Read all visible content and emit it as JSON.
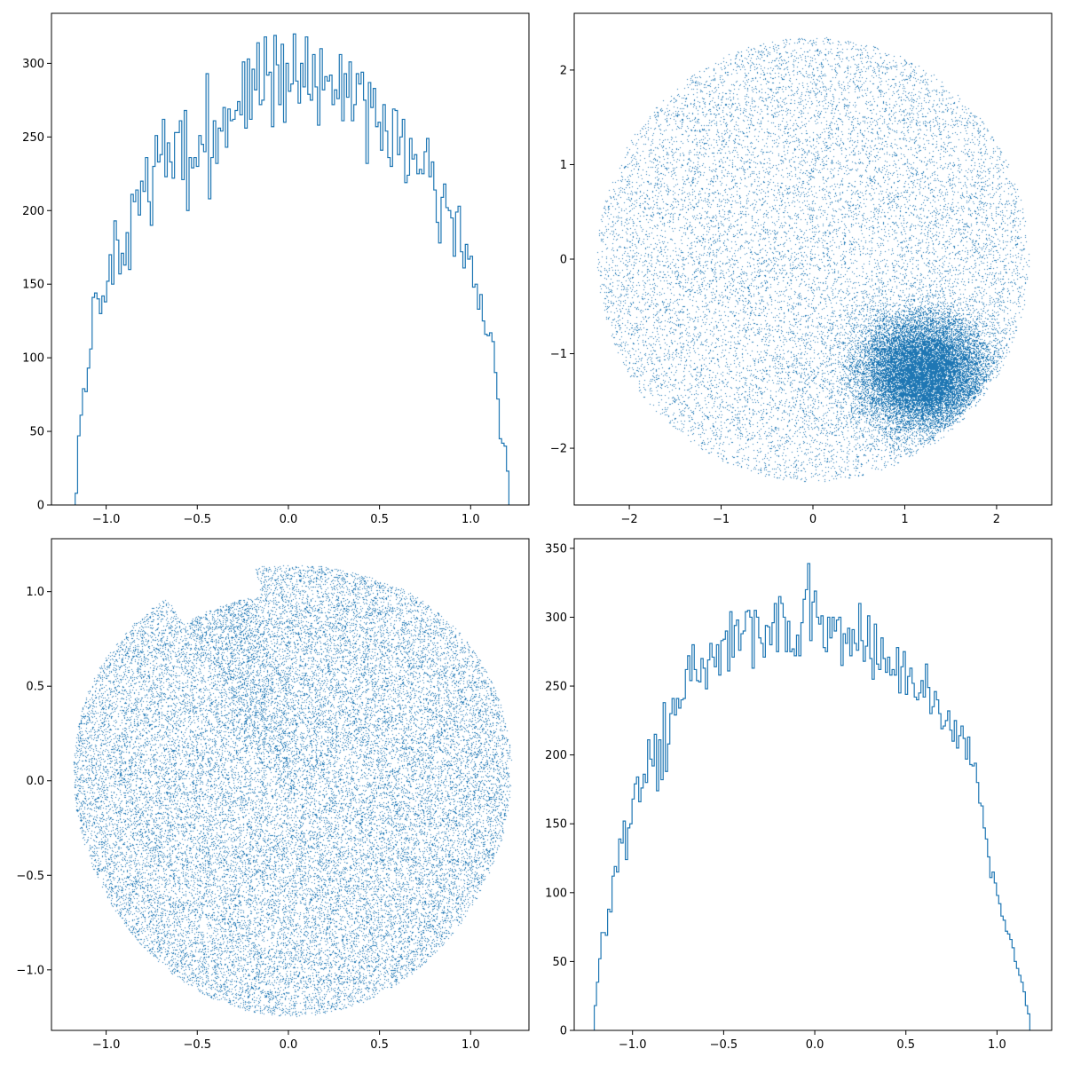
{
  "colors": {
    "series": "#1f77b4",
    "axes": "#000000",
    "background": "#ffffff"
  },
  "chart_data": [
    {
      "id": "top-left",
      "type": "histogram",
      "xlim": [
        -1.3,
        1.32
      ],
      "ylim": [
        0,
        334
      ],
      "xticks": [
        {
          "value": -1.0,
          "label": "−1.0"
        },
        {
          "value": -0.5,
          "label": "−0.5"
        },
        {
          "value": 0.0,
          "label": "0.0"
        },
        {
          "value": 0.5,
          "label": "0.5"
        },
        {
          "value": 1.0,
          "label": "1.0"
        }
      ],
      "yticks": [
        {
          "value": 0,
          "label": "0"
        },
        {
          "value": 50,
          "label": "50"
        },
        {
          "value": 100,
          "label": "100"
        },
        {
          "value": 150,
          "label": "150"
        },
        {
          "value": 200,
          "label": "200"
        },
        {
          "value": 250,
          "label": "250"
        },
        {
          "value": 300,
          "label": "300"
        }
      ],
      "bin_start": -1.17,
      "bin_end": 1.21,
      "counts": [
        8,
        47,
        61,
        79,
        77,
        93,
        106,
        141,
        144,
        140,
        130,
        142,
        138,
        152,
        170,
        150,
        193,
        180,
        157,
        171,
        163,
        185,
        160,
        211,
        206,
        214,
        197,
        220,
        213,
        236,
        206,
        190,
        230,
        251,
        233,
        238,
        262,
        223,
        246,
        233,
        222,
        253,
        253,
        261,
        221,
        268,
        200,
        236,
        229,
        236,
        230,
        251,
        245,
        240,
        293,
        208,
        236,
        261,
        232,
        256,
        254,
        270,
        243,
        269,
        261,
        262,
        268,
        274,
        265,
        301,
        256,
        303,
        262,
        296,
        282,
        314,
        272,
        275,
        318,
        292,
        294,
        257,
        319,
        299,
        272,
        313,
        260,
        300,
        281,
        286,
        320,
        288,
        273,
        300,
        284,
        318,
        279,
        275,
        306,
        284,
        258,
        310,
        282,
        291,
        288,
        292,
        272,
        282,
        276,
        306,
        261,
        293,
        277,
        301,
        261,
        272,
        293,
        286,
        294,
        275,
        232,
        287,
        270,
        283,
        257,
        260,
        241,
        272,
        254,
        236,
        230,
        269,
        268,
        238,
        250,
        262,
        219,
        224,
        249,
        235,
        238,
        225,
        228,
        225,
        240,
        249,
        223,
        233,
        214,
        192,
        178,
        209,
        218,
        202,
        200,
        195,
        169,
        199,
        203,
        172,
        161,
        177,
        167,
        169,
        148,
        150,
        133,
        143,
        125,
        116,
        115,
        117,
        111,
        90,
        72,
        45,
        42,
        40,
        23
      ]
    },
    {
      "id": "top-right",
      "type": "scatter",
      "xlim": [
        -2.6,
        2.6
      ],
      "ylim": [
        -2.6,
        2.6
      ],
      "xticks": [
        {
          "value": -2,
          "label": "−2"
        },
        {
          "value": -1,
          "label": "−1"
        },
        {
          "value": 0,
          "label": "0"
        },
        {
          "value": 1,
          "label": "1"
        },
        {
          "value": 2,
          "label": "2"
        }
      ],
      "yticks": [
        {
          "value": -2,
          "label": "−2"
        },
        {
          "value": -1,
          "label": "−1"
        },
        {
          "value": 0,
          "label": "0"
        },
        {
          "value": 1,
          "label": "1"
        },
        {
          "value": 2,
          "label": "2"
        }
      ],
      "description_of_distribution": {
        "uniform_disk": {
          "center": [
            0,
            0
          ],
          "radius": 2.35,
          "points": 14000
        },
        "dense_cluster": {
          "center": [
            1.2,
            -1.2
          ],
          "spread": [
            0.35,
            0.3
          ],
          "points": 18000
        }
      },
      "marker_size": 1
    },
    {
      "id": "bottom-left",
      "type": "scatter",
      "xlim": [
        -1.3,
        1.32
      ],
      "ylim": [
        -1.32,
        1.28
      ],
      "xticks": [
        {
          "value": -1.0,
          "label": "−1.0"
        },
        {
          "value": -0.5,
          "label": "−0.5"
        },
        {
          "value": 0.0,
          "label": "0.0"
        },
        {
          "value": 0.5,
          "label": "0.5"
        },
        {
          "value": 1.0,
          "label": "1.0"
        }
      ],
      "yticks": [
        {
          "value": -1.0,
          "label": "−1.0"
        },
        {
          "value": -0.5,
          "label": "−0.5"
        },
        {
          "value": 0.0,
          "label": "0.0"
        },
        {
          "value": 0.5,
          "label": "0.5"
        },
        {
          "value": 1.0,
          "label": "1.0"
        }
      ],
      "description_of_distribution": {
        "uniform_blob": {
          "center": [
            0.02,
            -0.02
          ],
          "radius": 1.2,
          "points": 30000
        }
      },
      "marker_size": 1
    },
    {
      "id": "bottom-right",
      "type": "histogram",
      "xlim": [
        -1.32,
        1.3
      ],
      "ylim": [
        0,
        357
      ],
      "xticks": [
        {
          "value": -1.0,
          "label": "−1.0"
        },
        {
          "value": -0.5,
          "label": "−0.5"
        },
        {
          "value": 0.0,
          "label": "0.0"
        },
        {
          "value": 0.5,
          "label": "0.5"
        },
        {
          "value": 1.0,
          "label": "1.0"
        }
      ],
      "yticks": [
        {
          "value": 0,
          "label": "0"
        },
        {
          "value": 50,
          "label": "50"
        },
        {
          "value": 100,
          "label": "100"
        },
        {
          "value": 150,
          "label": "150"
        },
        {
          "value": 200,
          "label": "200"
        },
        {
          "value": 250,
          "label": "250"
        },
        {
          "value": 300,
          "label": "300"
        },
        {
          "value": 350,
          "label": "350"
        }
      ],
      "bin_start": -1.21,
      "bin_end": 1.18,
      "counts": [
        18,
        35,
        52,
        71,
        71,
        69,
        88,
        86,
        112,
        119,
        115,
        139,
        136,
        152,
        124,
        147,
        150,
        168,
        179,
        184,
        166,
        176,
        186,
        180,
        211,
        197,
        192,
        215,
        174,
        211,
        182,
        238,
        188,
        208,
        230,
        241,
        229,
        241,
        234,
        240,
        241,
        262,
        272,
        254,
        280,
        262,
        254,
        253,
        270,
        263,
        248,
        269,
        281,
        271,
        264,
        280,
        258,
        283,
        284,
        290,
        261,
        304,
        271,
        294,
        298,
        276,
        288,
        290,
        304,
        305,
        300,
        263,
        305,
        300,
        285,
        281,
        271,
        294,
        293,
        280,
        296,
        310,
        275,
        315,
        310,
        300,
        275,
        297,
        275,
        277,
        272,
        287,
        272,
        296,
        313,
        320,
        339,
        283,
        311,
        319,
        300,
        295,
        301,
        278,
        275,
        300,
        285,
        300,
        290,
        298,
        300,
        265,
        288,
        281,
        292,
        272,
        291,
        281,
        276,
        310,
        283,
        268,
        279,
        301,
        270,
        255,
        295,
        266,
        262,
        285,
        270,
        260,
        271,
        258,
        262,
        258,
        278,
        245,
        264,
        275,
        244,
        257,
        263,
        252,
        242,
        240,
        245,
        254,
        242,
        266,
        249,
        230,
        235,
        246,
        240,
        230,
        219,
        221,
        225,
        232,
        218,
        210,
        225,
        205,
        214,
        221,
        212,
        197,
        213,
        193,
        192,
        194,
        180,
        165,
        163,
        147,
        139,
        126,
        111,
        115,
        107,
        98,
        92,
        83,
        80,
        72,
        70,
        66,
        60,
        50,
        45,
        40,
        35,
        28,
        18,
        12
      ]
    }
  ]
}
